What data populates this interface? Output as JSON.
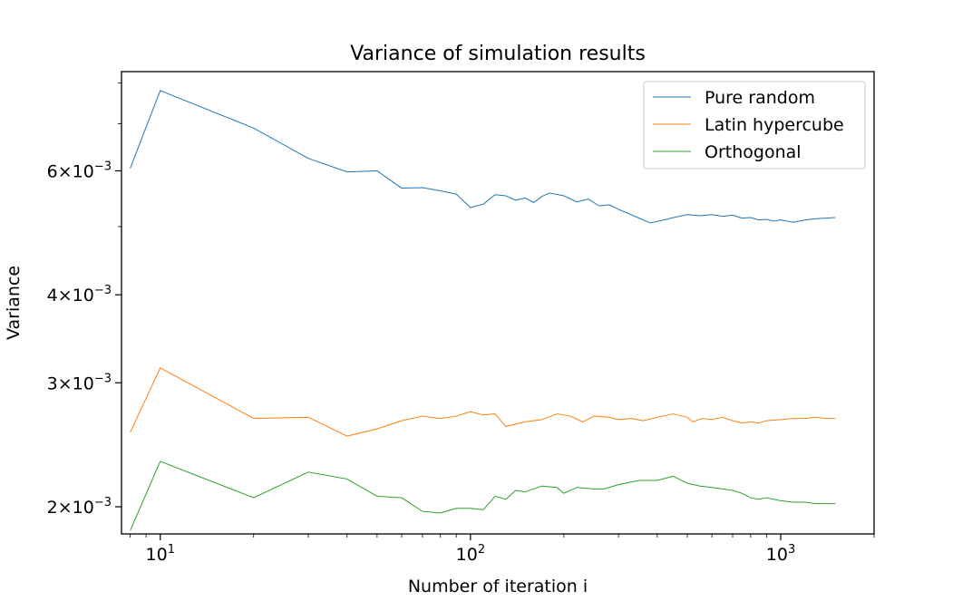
{
  "chart_data": {
    "type": "line",
    "title": "Variance of simulation results",
    "xlabel": "Number of iteration i",
    "ylabel": "Variance",
    "xscale": "log",
    "yscale": "log",
    "xlim": [
      7.5,
      2000
    ],
    "ylim": [
      0.00183,
      0.0083
    ],
    "grid": false,
    "legend_position": "top-right",
    "x_ticks": [
      {
        "value": 10,
        "base": "10",
        "exp": "1"
      },
      {
        "value": 100,
        "base": "10",
        "exp": "2"
      },
      {
        "value": 1000,
        "base": "10",
        "exp": "3"
      }
    ],
    "y_ticks": [
      {
        "value": 0.002,
        "mant": "2",
        "base": "10",
        "exp": "−3"
      },
      {
        "value": 0.003,
        "mant": "3",
        "base": "10",
        "exp": "−3"
      },
      {
        "value": 0.004,
        "mant": "4",
        "base": "10",
        "exp": "−3"
      },
      {
        "value": 0.006,
        "mant": "6",
        "base": "10",
        "exp": "−3"
      }
    ],
    "series": [
      {
        "name": "Pure random",
        "color": "#1f77b4",
        "points": [
          [
            8,
            0.00605
          ],
          [
            10,
            0.0078
          ],
          [
            20,
            0.0069
          ],
          [
            30,
            0.00625
          ],
          [
            40,
            0.00598
          ],
          [
            50,
            0.006
          ],
          [
            60,
            0.00567
          ],
          [
            70,
            0.00568
          ],
          [
            80,
            0.00562
          ],
          [
            90,
            0.00556
          ],
          [
            100,
            0.00532
          ],
          [
            110,
            0.00538
          ],
          [
            120,
            0.00555
          ],
          [
            130,
            0.00553
          ],
          [
            140,
            0.00545
          ],
          [
            150,
            0.00549
          ],
          [
            160,
            0.00541
          ],
          [
            170,
            0.00552
          ],
          [
            180,
            0.00558
          ],
          [
            200,
            0.00553
          ],
          [
            220,
            0.00542
          ],
          [
            240,
            0.00547
          ],
          [
            260,
            0.00535
          ],
          [
            280,
            0.00537
          ],
          [
            300,
            0.00529
          ],
          [
            350,
            0.00514
          ],
          [
            380,
            0.00506
          ],
          [
            420,
            0.00511
          ],
          [
            460,
            0.00516
          ],
          [
            500,
            0.0052
          ],
          [
            550,
            0.00518
          ],
          [
            600,
            0.0052
          ],
          [
            650,
            0.00517
          ],
          [
            700,
            0.00519
          ],
          [
            750,
            0.00514
          ],
          [
            800,
            0.00515
          ],
          [
            850,
            0.00511
          ],
          [
            900,
            0.00512
          ],
          [
            950,
            0.00509
          ],
          [
            1000,
            0.00511
          ],
          [
            1100,
            0.00507
          ],
          [
            1200,
            0.00511
          ],
          [
            1300,
            0.00513
          ],
          [
            1400,
            0.00514
          ],
          [
            1500,
            0.00515
          ]
        ]
      },
      {
        "name": "Latin hypercube",
        "color": "#ff7f0e",
        "points": [
          [
            8,
            0.00255
          ],
          [
            10,
            0.00315
          ],
          [
            20,
            0.00267
          ],
          [
            30,
            0.00268
          ],
          [
            40,
            0.00252
          ],
          [
            50,
            0.00258
          ],
          [
            60,
            0.00265
          ],
          [
            70,
            0.00269
          ],
          [
            80,
            0.00267
          ],
          [
            90,
            0.00269
          ],
          [
            100,
            0.00273
          ],
          [
            110,
            0.0027
          ],
          [
            120,
            0.00271
          ],
          [
            130,
            0.0026
          ],
          [
            150,
            0.00264
          ],
          [
            170,
            0.00266
          ],
          [
            190,
            0.00271
          ],
          [
            210,
            0.00269
          ],
          [
            230,
            0.00264
          ],
          [
            250,
            0.00269
          ],
          [
            280,
            0.00268
          ],
          [
            300,
            0.00266
          ],
          [
            330,
            0.00267
          ],
          [
            360,
            0.00265
          ],
          [
            400,
            0.00268
          ],
          [
            450,
            0.00271
          ],
          [
            500,
            0.00268
          ],
          [
            520,
            0.00264
          ],
          [
            560,
            0.00267
          ],
          [
            600,
            0.00266
          ],
          [
            650,
            0.00268
          ],
          [
            700,
            0.00265
          ],
          [
            750,
            0.00263
          ],
          [
            800,
            0.00264
          ],
          [
            850,
            0.00263
          ],
          [
            900,
            0.00265
          ],
          [
            1000,
            0.00266
          ],
          [
            1100,
            0.00267
          ],
          [
            1200,
            0.00267
          ],
          [
            1300,
            0.00268
          ],
          [
            1400,
            0.00267
          ],
          [
            1500,
            0.00267
          ]
        ]
      },
      {
        "name": "Orthogonal",
        "color": "#2ca02c",
        "points": [
          [
            8,
            0.00185
          ],
          [
            10,
            0.00232
          ],
          [
            20,
            0.00206
          ],
          [
            30,
            0.00224
          ],
          [
            40,
            0.00219
          ],
          [
            50,
            0.00207
          ],
          [
            60,
            0.00206
          ],
          [
            70,
            0.00197
          ],
          [
            80,
            0.00196
          ],
          [
            90,
            0.00199
          ],
          [
            100,
            0.00199
          ],
          [
            110,
            0.00198
          ],
          [
            120,
            0.00207
          ],
          [
            130,
            0.00205
          ],
          [
            140,
            0.00211
          ],
          [
            150,
            0.0021
          ],
          [
            170,
            0.00214
          ],
          [
            190,
            0.00213
          ],
          [
            200,
            0.00209
          ],
          [
            220,
            0.00213
          ],
          [
            250,
            0.00212
          ],
          [
            270,
            0.00212
          ],
          [
            300,
            0.00215
          ],
          [
            350,
            0.00218
          ],
          [
            400,
            0.00218
          ],
          [
            450,
            0.00221
          ],
          [
            500,
            0.00216
          ],
          [
            550,
            0.00214
          ],
          [
            600,
            0.00213
          ],
          [
            650,
            0.00212
          ],
          [
            700,
            0.00211
          ],
          [
            750,
            0.00209
          ],
          [
            800,
            0.00206
          ],
          [
            850,
            0.00205
          ],
          [
            900,
            0.00206
          ],
          [
            1000,
            0.00204
          ],
          [
            1100,
            0.00203
          ],
          [
            1200,
            0.00203
          ],
          [
            1300,
            0.00202
          ],
          [
            1400,
            0.00202
          ],
          [
            1500,
            0.00202
          ]
        ]
      }
    ]
  }
}
